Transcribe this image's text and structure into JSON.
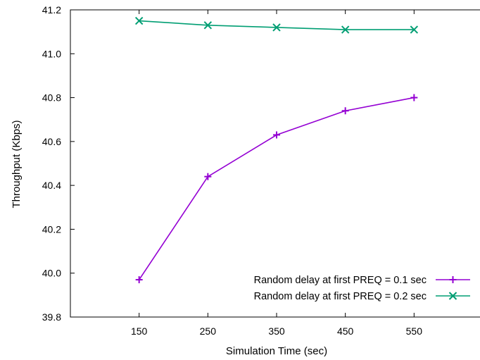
{
  "chart_data": {
    "type": "line",
    "title": "",
    "xlabel": "Simulation Time (sec)",
    "ylabel": "Throughput (Kbps)",
    "xlim": [
      50,
      650
    ],
    "ylim": [
      39.8,
      41.2
    ],
    "xticks": [
      150,
      250,
      350,
      450,
      550
    ],
    "xtick_labels": [
      "150",
      "250",
      "350",
      "450",
      "550"
    ],
    "yticks": [
      39.8,
      40.0,
      40.2,
      40.4,
      40.6,
      40.8,
      41.0,
      41.2
    ],
    "ytick_labels": [
      "39.8",
      "40.0",
      "40.2",
      "40.4",
      "40.6",
      "40.8",
      "41.0",
      "41.2"
    ],
    "grid": false,
    "legend_position": "bottom-right",
    "x": [
      150,
      250,
      350,
      450,
      550
    ],
    "series": [
      {
        "name": "Random delay at first PREQ = 0.1 sec",
        "values": [
          39.97,
          40.44,
          40.63,
          40.74,
          40.8
        ],
        "color": "#9400d3",
        "marker": "plus"
      },
      {
        "name": "Random delay at first PREQ = 0.2 sec",
        "values": [
          41.15,
          41.13,
          41.12,
          41.11,
          41.11
        ],
        "color": "#009e73",
        "marker": "cross"
      }
    ]
  }
}
